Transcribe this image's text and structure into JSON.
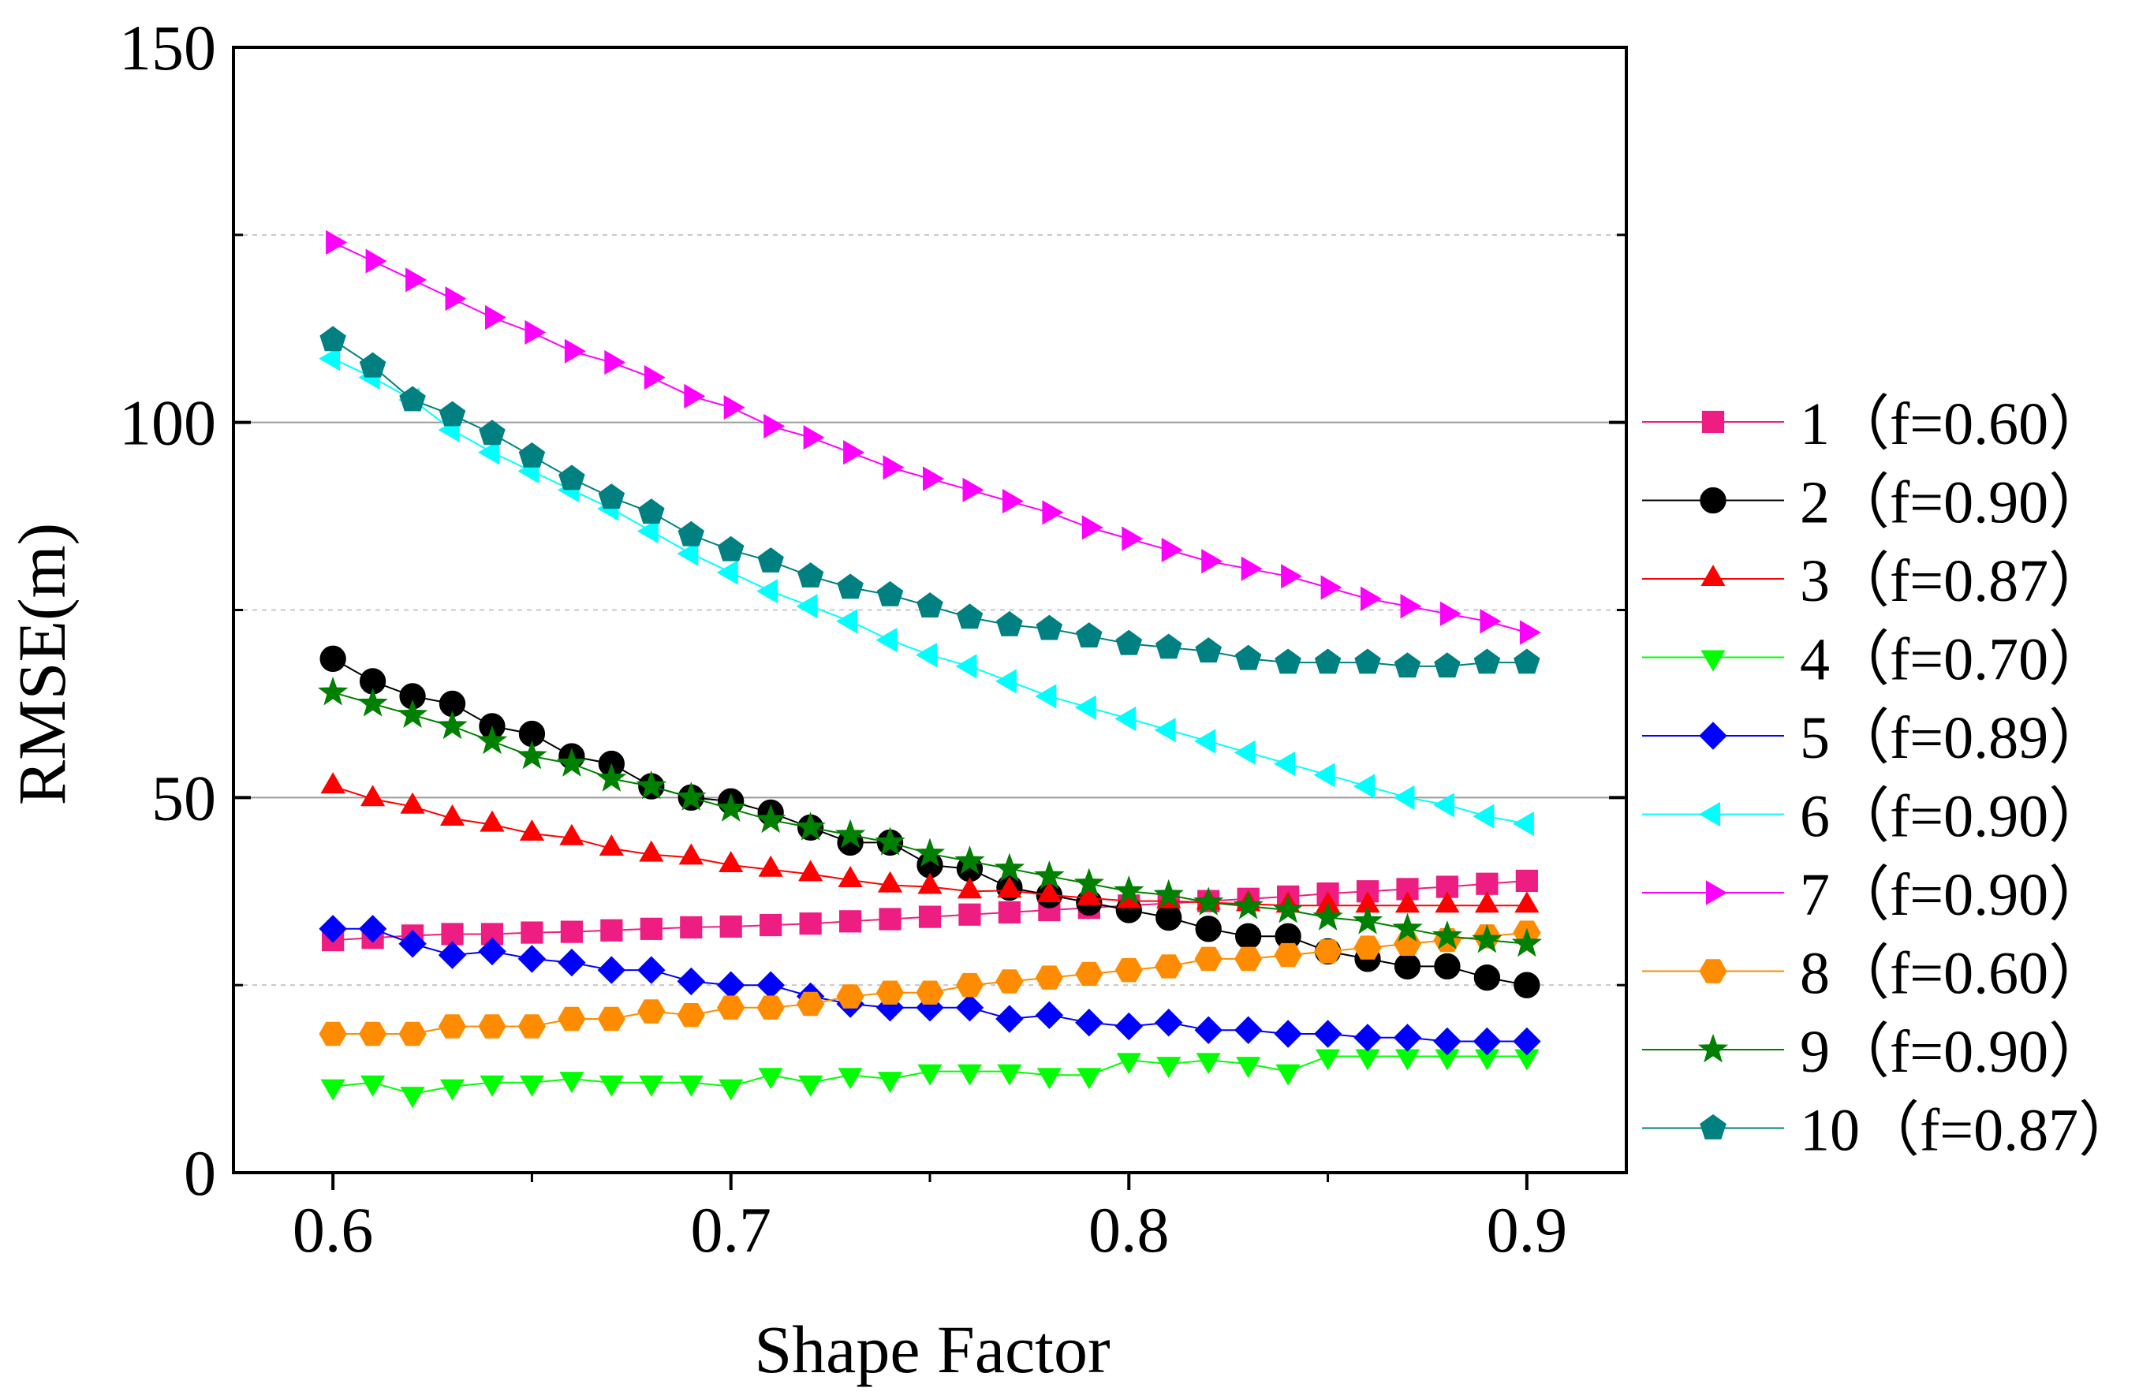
{
  "chart_data": {
    "type": "line",
    "title": "",
    "xlabel": "Shape Factor",
    "ylabel": "RMSE(m)",
    "xlim": [
      0.575,
      0.925
    ],
    "ylim": [
      0,
      150
    ],
    "xticks": [
      0.6,
      0.7,
      0.8,
      0.9
    ],
    "xtick_labels": [
      "0.6",
      "0.7",
      "0.8",
      "0.9"
    ],
    "yticks": [
      0,
      50,
      100,
      150
    ],
    "ytick_labels": [
      "0",
      "50",
      "100",
      "150"
    ],
    "grid": "horizontal gridlines at 25, 50, 75, 100, 125",
    "legend_position": "right",
    "x": [
      0.6,
      0.61,
      0.62,
      0.63,
      0.64,
      0.65,
      0.66,
      0.67,
      0.68,
      0.69,
      0.7,
      0.71,
      0.72,
      0.73,
      0.74,
      0.75,
      0.76,
      0.77,
      0.78,
      0.79,
      0.8,
      0.81,
      0.82,
      0.83,
      0.84,
      0.85,
      0.86,
      0.87,
      0.88,
      0.89,
      0.9
    ],
    "series": [
      {
        "name": "1（f=0.60）",
        "color": "#ee1d82",
        "marker": "square",
        "values": [
          31.0,
          31.3,
          31.6,
          31.8,
          31.8,
          32.0,
          32.1,
          32.3,
          32.5,
          32.7,
          32.8,
          33.0,
          33.2,
          33.5,
          33.8,
          34.1,
          34.4,
          34.7,
          35.0,
          35.3,
          35.6,
          35.9,
          36.2,
          36.5,
          36.8,
          37.2,
          37.5,
          37.8,
          38.1,
          38.5,
          38.9
        ]
      },
      {
        "name": "2（f=0.90）",
        "color": "#000000",
        "marker": "circle",
        "values": [
          68.5,
          65.5,
          63.5,
          62.5,
          59.5,
          58.5,
          55.5,
          54.5,
          51.5,
          50.0,
          49.5,
          48.0,
          46.0,
          44.0,
          44.0,
          41.0,
          40.5,
          38.0,
          37.0,
          36.0,
          35.0,
          34.0,
          32.5,
          31.5,
          31.5,
          29.5,
          28.5,
          27.5,
          27.5,
          26.0,
          25.0
        ]
      },
      {
        "name": "3（f=0.87）",
        "color": "#ff0000",
        "marker": "triangle-up",
        "values": [
          51.5,
          49.8,
          48.8,
          47.2,
          46.4,
          45.2,
          44.6,
          43.2,
          42.4,
          42.0,
          41.0,
          40.4,
          39.8,
          39.0,
          38.3,
          38.1,
          37.5,
          37.6,
          37.0,
          36.6,
          36.2,
          36.2,
          36.0,
          35.8,
          35.6,
          35.6,
          35.6,
          35.6,
          35.6,
          35.6,
          35.6
        ]
      },
      {
        "name": "4（f=0.70）",
        "color": "#00ff00",
        "marker": "triangle-down",
        "values": [
          11.5,
          12.0,
          10.5,
          11.5,
          12.0,
          12.0,
          12.5,
          12.0,
          12.0,
          12.0,
          11.5,
          13.0,
          12.0,
          13.0,
          12.5,
          13.5,
          13.5,
          13.5,
          13.0,
          13.0,
          15.0,
          14.5,
          15.0,
          14.5,
          13.5,
          15.5,
          15.5,
          15.5,
          15.5,
          15.5,
          15.5
        ]
      },
      {
        "name": "5（f=0.89）",
        "color": "#0000ff",
        "marker": "diamond",
        "values": [
          32.5,
          32.5,
          30.5,
          29.0,
          29.5,
          28.5,
          28.0,
          27.0,
          27.0,
          25.5,
          25.0,
          25.0,
          23.5,
          22.5,
          22.0,
          22.0,
          22.0,
          20.5,
          21.0,
          20.0,
          19.5,
          20.0,
          19.0,
          19.0,
          18.5,
          18.5,
          18.0,
          18.0,
          17.5,
          17.5,
          17.5
        ]
      },
      {
        "name": "6（f=0.90）",
        "color": "#00ffff",
        "marker": "triangle-left",
        "values": [
          108.5,
          106.0,
          103.0,
          99.0,
          96.0,
          93.5,
          91.0,
          88.5,
          85.5,
          82.5,
          80.0,
          77.5,
          75.5,
          73.5,
          71.0,
          69.0,
          67.5,
          65.5,
          63.5,
          62.0,
          60.5,
          59.0,
          57.5,
          56.0,
          54.5,
          53.0,
          51.5,
          50.0,
          49.0,
          47.5,
          46.5
        ]
      },
      {
        "name": "7（f=0.90）",
        "color": "#ff00ff",
        "marker": "triangle-right",
        "values": [
          124.0,
          121.5,
          119.0,
          116.5,
          114.0,
          112.0,
          109.5,
          108.0,
          106.0,
          103.5,
          102.0,
          99.5,
          98.0,
          96.0,
          94.0,
          92.5,
          91.0,
          89.5,
          88.0,
          86.0,
          84.5,
          83.0,
          81.5,
          80.5,
          79.5,
          78.0,
          76.5,
          75.5,
          74.5,
          73.5,
          72.0
        ]
      },
      {
        "name": "8（f=0.60）",
        "color": "#ff8c00",
        "marker": "hexagon",
        "values": [
          18.5,
          18.5,
          18.5,
          19.5,
          19.5,
          19.5,
          20.5,
          20.5,
          21.5,
          21.0,
          22.0,
          22.0,
          22.5,
          23.5,
          24.0,
          24.0,
          25.0,
          25.5,
          26.0,
          26.5,
          27.0,
          27.5,
          28.5,
          28.5,
          29.0,
          29.5,
          30.0,
          30.5,
          31.0,
          31.5,
          32.0
        ]
      },
      {
        "name": "9（f=0.90）",
        "color": "#008000",
        "marker": "star",
        "values": [
          64.0,
          62.5,
          61.0,
          59.5,
          57.5,
          55.5,
          54.5,
          52.5,
          51.5,
          50.0,
          48.5,
          47.0,
          46.0,
          45.0,
          44.0,
          42.5,
          41.5,
          40.5,
          39.5,
          38.5,
          37.5,
          37.0,
          36.0,
          35.5,
          35.0,
          34.0,
          33.5,
          32.5,
          31.5,
          31.0,
          30.5
        ]
      },
      {
        "name": "10（f=0.87）",
        "color": "#008080",
        "marker": "pentagon",
        "values": [
          111.0,
          107.5,
          103.0,
          101.0,
          98.5,
          95.5,
          92.5,
          90.0,
          88.0,
          85.0,
          83.0,
          81.5,
          79.5,
          78.0,
          77.0,
          75.5,
          74.0,
          73.0,
          72.5,
          71.5,
          70.5,
          70.0,
          69.5,
          68.5,
          68.0,
          68.0,
          68.0,
          67.5,
          67.5,
          68.0,
          68.0
        ]
      }
    ]
  }
}
